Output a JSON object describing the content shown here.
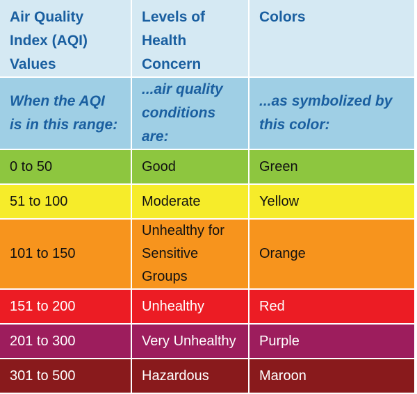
{
  "table": {
    "header": [
      "Air Quality Index (AQI) Values",
      "Levels of Health Concern",
      "Colors"
    ],
    "header_background": "#d5e9f3",
    "subheader": [
      "When the AQI is in this range:",
      "...air quality conditions are:",
      "...as symbolized by this color:"
    ],
    "subheader_background": "#9fcfe5",
    "heading_color": "#1a5fa0",
    "rows": [
      {
        "cells": [
          "0 to 50",
          "Good",
          "Green"
        ],
        "background": "#8dc63f",
        "text_color": "#111111"
      },
      {
        "cells": [
          "51 to 100",
          "Moderate",
          "Yellow"
        ],
        "background": "#f6ec2a",
        "text_color": "#111111"
      },
      {
        "cells": [
          "101 to 150",
          "Unhealthy for Sensitive Groups",
          "Orange"
        ],
        "background": "#f7941d",
        "text_color": "#111111"
      },
      {
        "cells": [
          "151 to 200",
          "Unhealthy",
          "Red"
        ],
        "background": "#ec1c24",
        "text_color": "#ffffff"
      },
      {
        "cells": [
          "201 to 300",
          "Very Unhealthy",
          "Purple"
        ],
        "background": "#9d1d5d",
        "text_color": "#ffffff"
      },
      {
        "cells": [
          "301 to 500",
          "Hazardous",
          "Maroon"
        ],
        "background": "#891a1c",
        "text_color": "#ffffff"
      }
    ]
  }
}
